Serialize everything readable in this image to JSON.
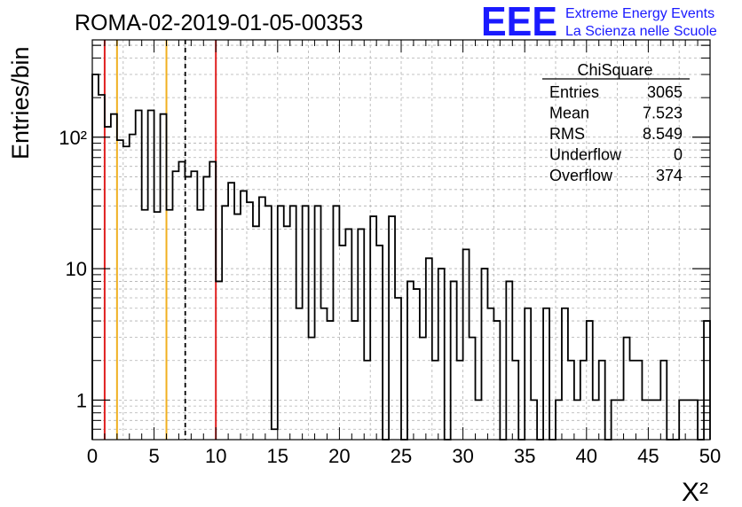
{
  "header": {
    "title": "ROMA-02-2019-01-05-00353",
    "logo_text": "EEE",
    "logo_line1": "Extreme Energy Events",
    "logo_line2": "La Scienza nelle Scuole"
  },
  "stats": {
    "title": "ChiSquare",
    "rows": [
      {
        "label": "Entries",
        "value": "3065"
      },
      {
        "label": "Mean",
        "value": "7.523"
      },
      {
        "label": "RMS",
        "value": "8.549"
      },
      {
        "label": "Underflow",
        "value": "0"
      },
      {
        "label": "Overflow",
        "value": "374"
      }
    ]
  },
  "colors": {
    "red_lines": "#e02020",
    "yellow_lines": "#f0b020",
    "logo_blue": "#1a1aff",
    "grid": "#b0b0b0"
  },
  "chart_data": {
    "type": "histogram",
    "title": "ROMA-02-2019-01-05-00353",
    "xlabel": "X²",
    "ylabel": "Entries/bin",
    "xlim": [
      0,
      50
    ],
    "ylim": [
      0.5,
      550
    ],
    "yscale": "log",
    "grid": true,
    "bin_width": 0.5,
    "x_ticks": [
      0,
      5,
      10,
      15,
      20,
      25,
      30,
      35,
      40,
      45,
      50
    ],
    "x_tick_labels": [
      "0",
      "5",
      "10",
      "15",
      "20",
      "25",
      "30",
      "35",
      "40",
      "45",
      "50"
    ],
    "y_ticks": [
      1,
      10,
      100
    ],
    "y_tick_labels": [
      "1",
      "10",
      "10²"
    ],
    "vertical_lines": [
      {
        "x": 1,
        "color": "red",
        "style": "solid"
      },
      {
        "x": 2,
        "color": "yellow",
        "style": "solid"
      },
      {
        "x": 6,
        "color": "yellow",
        "style": "solid"
      },
      {
        "x": 7.523,
        "color": "black",
        "style": "dashed"
      },
      {
        "x": 10,
        "color": "red",
        "style": "solid"
      }
    ],
    "values": [
      300,
      210,
      120,
      150,
      95,
      85,
      105,
      160,
      28,
      160,
      27,
      150,
      28,
      55,
      65,
      50,
      55,
      28,
      50,
      65,
      8,
      30,
      45,
      26,
      39,
      32,
      21,
      35,
      30,
      0.6,
      30,
      21,
      30,
      5,
      30,
      3,
      30,
      5,
      4,
      30,
      15,
      20,
      4,
      20,
      2,
      25,
      15,
      0,
      25,
      6,
      0,
      8,
      7,
      3,
      12,
      2,
      10,
      0,
      8,
      2,
      14,
      3,
      1,
      10,
      5,
      4,
      0,
      8,
      2,
      0,
      5,
      1,
      0,
      5,
      0,
      1,
      5,
      2,
      1,
      2,
      4,
      1,
      2,
      0,
      1,
      1,
      3,
      2,
      2,
      1,
      1,
      1,
      2,
      0,
      0,
      1,
      1,
      1,
      0,
      4
    ]
  }
}
